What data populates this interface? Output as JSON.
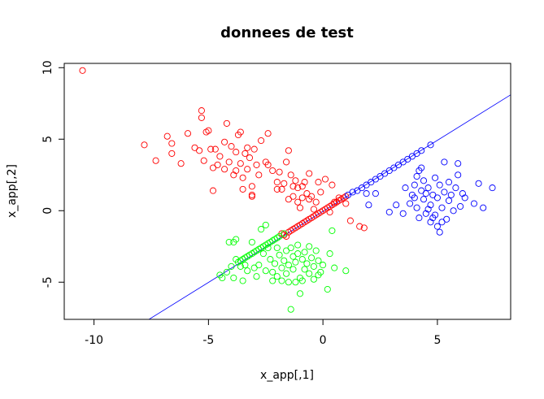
{
  "chart_data": {
    "type": "scatter",
    "title": "donnees de test",
    "xlabel": "x_app[,1]",
    "ylabel": "x_app[,2]",
    "xlim": [
      -11.3,
      8.2
    ],
    "ylim": [
      -7.6,
      10.3
    ],
    "xticks": [
      -10,
      -5,
      0,
      5
    ],
    "yticks": [
      -5,
      0,
      5,
      10
    ],
    "grid": false,
    "line": {
      "color": "#0000ff",
      "points": [
        [
          -7.6,
          -7.6
        ],
        [
          8.2,
          8.1
        ]
      ]
    },
    "series": [
      {
        "color": "#ff0000",
        "points": [
          [
            -10.5,
            9.8
          ],
          [
            -7.8,
            4.6
          ],
          [
            -7.3,
            3.5
          ],
          [
            -6.8,
            5.2
          ],
          [
            -6.6,
            4.7
          ],
          [
            -6.6,
            4.0
          ],
          [
            -6.2,
            3.3
          ],
          [
            -5.9,
            5.4
          ],
          [
            -5.6,
            4.4
          ],
          [
            -5.4,
            4.2
          ],
          [
            -5.3,
            7.0
          ],
          [
            -5.3,
            6.5
          ],
          [
            -5.2,
            3.5
          ],
          [
            -5.1,
            5.5
          ],
          [
            -5.0,
            5.6
          ],
          [
            -4.9,
            4.3
          ],
          [
            -4.8,
            3.0
          ],
          [
            -4.8,
            1.4
          ],
          [
            -4.7,
            4.3
          ],
          [
            -4.6,
            3.2
          ],
          [
            -4.5,
            3.8
          ],
          [
            -4.3,
            2.9
          ],
          [
            -4.3,
            4.8
          ],
          [
            -4.2,
            6.1
          ],
          [
            -4.1,
            3.4
          ],
          [
            -4.0,
            4.5
          ],
          [
            -3.9,
            2.5
          ],
          [
            -3.8,
            2.8
          ],
          [
            -3.8,
            4.1
          ],
          [
            -3.7,
            5.3
          ],
          [
            -3.6,
            5.5
          ],
          [
            -3.6,
            3.3
          ],
          [
            -3.5,
            2.3
          ],
          [
            -3.5,
            1.5
          ],
          [
            -3.4,
            4.0
          ],
          [
            -3.3,
            2.9
          ],
          [
            -3.3,
            4.4
          ],
          [
            -3.2,
            3.7
          ],
          [
            -3.1,
            1.7
          ],
          [
            -3.1,
            1.0
          ],
          [
            -3.1,
            1.1
          ],
          [
            -3.0,
            4.3
          ],
          [
            -2.9,
            3.2
          ],
          [
            -2.8,
            2.5
          ],
          [
            -2.7,
            4.9
          ],
          [
            -2.5,
            3.4
          ],
          [
            -2.4,
            5.4
          ],
          [
            -2.4,
            3.2
          ],
          [
            -2.2,
            2.8
          ],
          [
            -2.0,
            1.5
          ],
          [
            -2.0,
            2.0
          ],
          [
            -1.9,
            2.7
          ],
          [
            -1.8,
            1.5
          ],
          [
            -1.7,
            1.9
          ],
          [
            -1.6,
            3.4
          ],
          [
            -1.5,
            0.8
          ],
          [
            -1.5,
            4.2
          ],
          [
            -1.4,
            2.5
          ],
          [
            -1.3,
            1.7
          ],
          [
            -1.3,
            1.0
          ],
          [
            -1.2,
            2.1
          ],
          [
            -1.1,
            1.6
          ],
          [
            -1.1,
            0.6
          ],
          [
            -1.0,
            0.2
          ],
          [
            -0.9,
            1.7
          ],
          [
            -0.9,
            0.9
          ],
          [
            -0.8,
            2.0
          ],
          [
            -0.7,
            1.2
          ],
          [
            -0.6,
            0.8
          ],
          [
            -0.6,
            2.6
          ],
          [
            -0.5,
            1.0
          ],
          [
            -0.4,
            0.1
          ],
          [
            -0.3,
            0.6
          ],
          [
            -0.2,
            2.0
          ],
          [
            -0.1,
            1.3
          ],
          [
            0.1,
            2.2
          ],
          [
            0.3,
            -0.1
          ],
          [
            0.4,
            1.8
          ],
          [
            0.5,
            0.6
          ],
          [
            0.7,
            0.9
          ],
          [
            0.8,
            0.8
          ],
          [
            1.0,
            0.5
          ],
          [
            1.2,
            -0.7
          ],
          [
            1.6,
            -1.1
          ],
          [
            1.8,
            -1.2
          ],
          [
            -1.6,
            -1.8
          ],
          [
            -1.8,
            -1.6
          ],
          [
            -1.7,
            -1.7
          ],
          [
            -1.5,
            -1.5
          ],
          [
            -1.3,
            -1.3
          ],
          [
            -1.1,
            -1.1
          ],
          [
            -0.9,
            -0.9
          ],
          [
            -0.7,
            -0.7
          ],
          [
            -0.5,
            -0.5
          ],
          [
            -0.3,
            -0.3
          ],
          [
            -0.1,
            -0.1
          ],
          [
            0.1,
            0.1
          ],
          [
            0.3,
            0.3
          ],
          [
            0.5,
            0.5
          ],
          [
            0.7,
            0.7
          ],
          [
            -1.4,
            -1.4
          ],
          [
            -1.2,
            -1.2
          ],
          [
            -1.0,
            -1.0
          ],
          [
            -0.8,
            -0.8
          ],
          [
            -0.6,
            -0.6
          ],
          [
            -0.4,
            -0.4
          ],
          [
            -0.2,
            -0.2
          ],
          [
            0.0,
            0.0
          ],
          [
            0.2,
            0.2
          ],
          [
            0.4,
            0.4
          ],
          [
            0.6,
            0.6
          ],
          [
            0.9,
            0.9
          ],
          [
            1.0,
            1.0
          ]
        ]
      },
      {
        "color": "#00ff00",
        "points": [
          [
            -4.5,
            -4.5
          ],
          [
            -4.2,
            -4.3
          ],
          [
            -4.0,
            -3.9
          ],
          [
            -3.9,
            -4.7
          ],
          [
            -3.8,
            -3.4
          ],
          [
            -3.7,
            -3.6
          ],
          [
            -3.6,
            -3.5
          ],
          [
            -3.5,
            -3.4
          ],
          [
            -3.4,
            -3.3
          ],
          [
            -3.3,
            -3.2
          ],
          [
            -3.2,
            -3.1
          ],
          [
            -3.1,
            -3.0
          ],
          [
            -3.0,
            -2.9
          ],
          [
            -2.9,
            -2.8
          ],
          [
            -2.8,
            -2.7
          ],
          [
            -2.7,
            -2.6
          ],
          [
            -2.6,
            -2.5
          ],
          [
            -2.5,
            -2.4
          ],
          [
            -2.4,
            -2.3
          ],
          [
            -2.3,
            -2.2
          ],
          [
            -2.2,
            -2.1
          ],
          [
            -2.1,
            -2.0
          ],
          [
            -2.0,
            -1.9
          ],
          [
            -1.9,
            -1.8
          ],
          [
            -1.7,
            -1.6
          ],
          [
            -3.9,
            -2.2
          ],
          [
            -3.8,
            -2.0
          ],
          [
            -3.4,
            -3.8
          ],
          [
            -3.3,
            -4.2
          ],
          [
            -3.1,
            -2.2
          ],
          [
            -3.0,
            -4.0
          ],
          [
            -2.9,
            -4.6
          ],
          [
            -2.8,
            -3.8
          ],
          [
            -2.7,
            -1.3
          ],
          [
            -2.6,
            -3.0
          ],
          [
            -2.5,
            -4.2
          ],
          [
            -2.5,
            -1.0
          ],
          [
            -2.4,
            -2.6
          ],
          [
            -2.3,
            -3.4
          ],
          [
            -2.2,
            -4.3
          ],
          [
            -2.1,
            -3.7
          ],
          [
            -2.0,
            -2.6
          ],
          [
            -2.0,
            -4.6
          ],
          [
            -1.9,
            -3.1
          ],
          [
            -1.8,
            -4.0
          ],
          [
            -1.8,
            -4.9
          ],
          [
            -1.7,
            -3.5
          ],
          [
            -1.6,
            -2.8
          ],
          [
            -1.6,
            -4.4
          ],
          [
            -1.5,
            -3.8
          ],
          [
            -1.5,
            -5.0
          ],
          [
            -1.4,
            -2.6
          ],
          [
            -1.3,
            -3.2
          ],
          [
            -1.3,
            -4.1
          ],
          [
            -1.2,
            -3.6
          ],
          [
            -1.1,
            -2.4
          ],
          [
            -1.1,
            -3.0
          ],
          [
            -1.0,
            -4.7
          ],
          [
            -1.0,
            -5.8
          ],
          [
            -0.9,
            -3.4
          ],
          [
            -0.9,
            -4.9
          ],
          [
            -0.8,
            -2.9
          ],
          [
            -0.8,
            -4.1
          ],
          [
            -0.7,
            -3.7
          ],
          [
            -0.6,
            -2.5
          ],
          [
            -0.6,
            -4.4
          ],
          [
            -0.5,
            -3.3
          ],
          [
            -0.4,
            -4.8
          ],
          [
            -0.4,
            -3.9
          ],
          [
            -0.3,
            -2.8
          ],
          [
            -0.2,
            -4.5
          ],
          [
            -0.2,
            -3.5
          ],
          [
            -0.1,
            -4.3
          ],
          [
            0.0,
            -3.8
          ],
          [
            0.2,
            -5.5
          ],
          [
            0.3,
            -3.0
          ],
          [
            0.4,
            -1.4
          ],
          [
            0.5,
            -4.0
          ],
          [
            1.0,
            -4.2
          ],
          [
            -1.4,
            -6.9
          ],
          [
            -1.2,
            -5.0
          ],
          [
            -2.2,
            -4.9
          ],
          [
            -3.5,
            -4.9
          ],
          [
            -4.1,
            -2.2
          ],
          [
            -4.4,
            -4.7
          ],
          [
            -3.6,
            -3.9
          ]
        ]
      },
      {
        "color": "#0000ff",
        "points": [
          [
            1.1,
            1.1
          ],
          [
            1.3,
            1.3
          ],
          [
            1.5,
            1.4
          ],
          [
            1.7,
            1.6
          ],
          [
            1.9,
            1.8
          ],
          [
            2.1,
            2.0
          ],
          [
            2.3,
            2.2
          ],
          [
            2.5,
            2.4
          ],
          [
            2.7,
            2.6
          ],
          [
            2.9,
            2.8
          ],
          [
            3.1,
            3.0
          ],
          [
            3.3,
            3.2
          ],
          [
            3.5,
            3.4
          ],
          [
            3.7,
            3.6
          ],
          [
            3.9,
            3.8
          ],
          [
            4.1,
            4.0
          ],
          [
            4.3,
            4.2
          ],
          [
            4.7,
            4.6
          ],
          [
            1.9,
            1.2
          ],
          [
            2.3,
            1.2
          ],
          [
            2.0,
            0.4
          ],
          [
            2.9,
            -0.1
          ],
          [
            3.2,
            0.4
          ],
          [
            3.6,
            1.6
          ],
          [
            3.8,
            0.5
          ],
          [
            3.9,
            1.1
          ],
          [
            4.0,
            1.8
          ],
          [
            4.1,
            0.2
          ],
          [
            4.2,
            -0.5
          ],
          [
            4.3,
            1.4
          ],
          [
            4.4,
            2.1
          ],
          [
            4.4,
            0.8
          ],
          [
            4.5,
            -0.2
          ],
          [
            4.6,
            1.6
          ],
          [
            4.7,
            0.4
          ],
          [
            4.7,
            -0.8
          ],
          [
            4.8,
            1.1
          ],
          [
            4.9,
            2.3
          ],
          [
            4.9,
            -0.3
          ],
          [
            5.0,
            0.9
          ],
          [
            5.1,
            1.8
          ],
          [
            5.1,
            -1.5
          ],
          [
            5.2,
            0.2
          ],
          [
            5.3,
            1.3
          ],
          [
            5.3,
            3.4
          ],
          [
            5.4,
            -0.6
          ],
          [
            5.5,
            0.7
          ],
          [
            5.5,
            2.0
          ],
          [
            5.6,
            1.1
          ],
          [
            5.7,
            0.0
          ],
          [
            5.8,
            1.6
          ],
          [
            5.9,
            2.5
          ],
          [
            5.9,
            3.3
          ],
          [
            6.0,
            0.3
          ],
          [
            6.1,
            1.2
          ],
          [
            6.2,
            0.9
          ],
          [
            6.6,
            0.5
          ],
          [
            6.8,
            1.9
          ],
          [
            7.0,
            0.2
          ],
          [
            7.4,
            1.6
          ],
          [
            4.1,
            2.4
          ],
          [
            4.2,
            2.8
          ],
          [
            4.3,
            3.0
          ],
          [
            4.5,
            1.2
          ],
          [
            4.6,
            0.1
          ],
          [
            3.5,
            -0.2
          ],
          [
            4.0,
            0.9
          ],
          [
            5.0,
            -1.1
          ],
          [
            5.2,
            -0.8
          ],
          [
            4.8,
            -0.5
          ]
        ]
      }
    ]
  }
}
